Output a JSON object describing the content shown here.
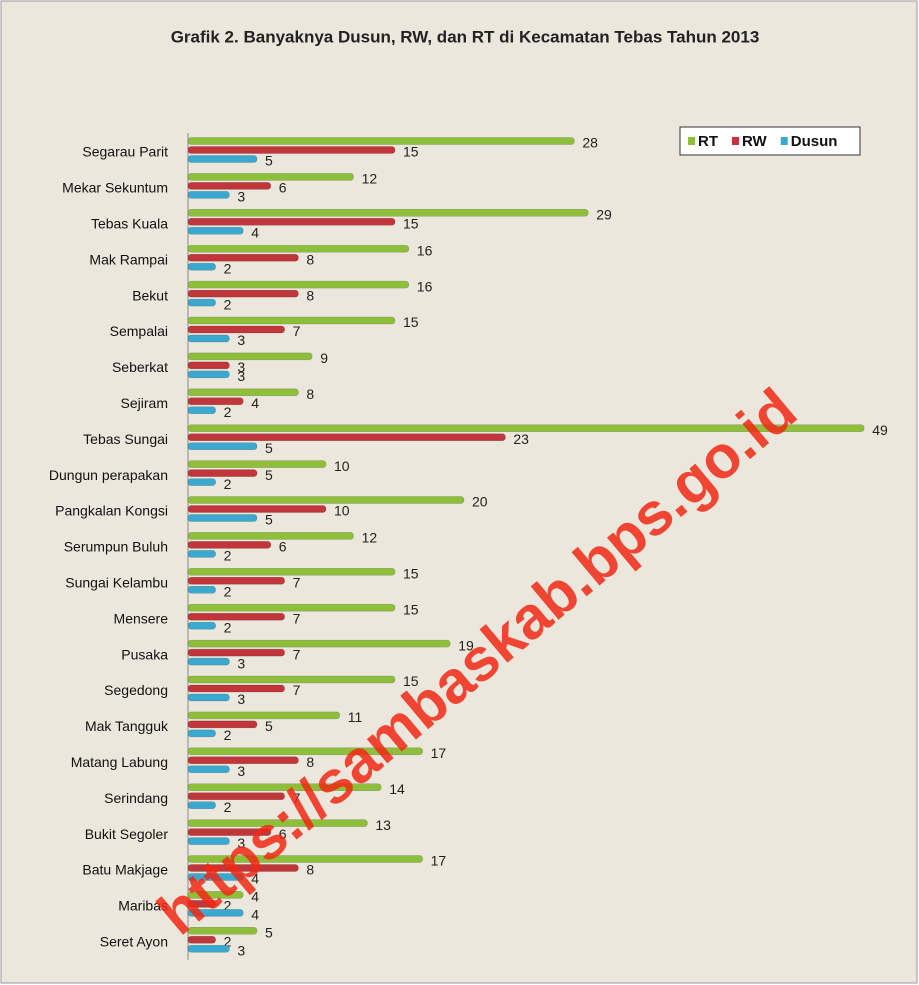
{
  "chart_data": {
    "type": "hbar",
    "title": "Grafik 2. Banyaknya Dusun, RW, dan RT di Kecamatan Tebas Tahun 2013",
    "watermark": "https://sambaskab.bps.go.id",
    "categories": [
      "Segarau Parit",
      "Mekar Sekuntum",
      "Tebas Kuala",
      "Mak Rampai",
      "Bekut",
      "Sempalai",
      "Seberkat",
      "Sejiram",
      "Tebas Sungai",
      "Dungun perapakan",
      "Pangkalan Kongsi",
      "Serumpun Buluh",
      "Sungai Kelambu",
      "Mensere",
      "Pusaka",
      "Segedong",
      "Mak Tangguk",
      "Matang Labung",
      "Serindang",
      "Bukit Segoler",
      "Batu Makjage",
      "Maribas",
      "Seret Ayon"
    ],
    "series": [
      {
        "name": "RT",
        "color": "#8dbf3a",
        "values": [
          28,
          12,
          29,
          16,
          16,
          15,
          9,
          8,
          49,
          10,
          20,
          12,
          15,
          15,
          19,
          15,
          11,
          17,
          14,
          13,
          17,
          4,
          5
        ]
      },
      {
        "name": "RW",
        "color": "#c0363a",
        "values": [
          15,
          6,
          15,
          8,
          8,
          7,
          3,
          4,
          23,
          5,
          10,
          6,
          7,
          7,
          7,
          7,
          5,
          8,
          7,
          6,
          8,
          2,
          2
        ]
      },
      {
        "name": "Dusun",
        "color": "#3aa8cf",
        "values": [
          5,
          3,
          4,
          2,
          2,
          3,
          3,
          2,
          5,
          2,
          5,
          2,
          2,
          2,
          3,
          3,
          2,
          3,
          2,
          3,
          4,
          4,
          3
        ]
      }
    ],
    "xlim": [
      0,
      50
    ],
    "legend": "top-right"
  }
}
